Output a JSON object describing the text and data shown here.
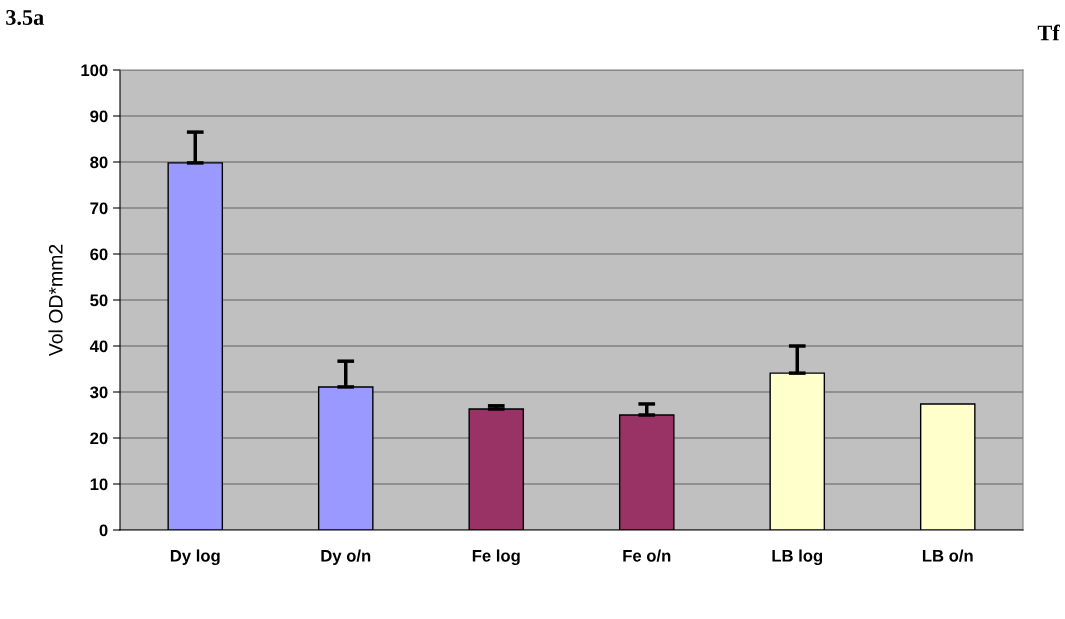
{
  "chart_data": {
    "type": "bar",
    "ylabel": "Vol OD*mm2",
    "categories": [
      "Dy log",
      "Dy o/n",
      "Fe log",
      "Fe o/n",
      "LB log",
      "LB o/n"
    ],
    "values": [
      79.8,
      31.1,
      26.3,
      25.0,
      34.1,
      27.4
    ],
    "errors": [
      6.7,
      5.6,
      0.7,
      2.4,
      5.9,
      null
    ],
    "colors": [
      "#9999ff",
      "#9999ff",
      "#993366",
      "#993366",
      "#ffffcc",
      "#ffffcc"
    ],
    "ylim": [
      0,
      100
    ],
    "yticks": [
      0,
      10,
      20,
      30,
      40,
      50,
      60,
      70,
      80,
      90,
      100
    ],
    "grid": "y",
    "annotations": [
      "3.5a",
      "Tf"
    ]
  }
}
